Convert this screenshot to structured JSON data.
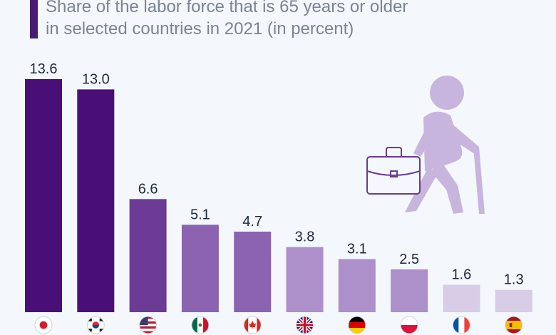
{
  "header": {
    "title_line1": "Share of the labor force that is 65 years or older",
    "title_line2": "in selected countries in 2021 (in percent)"
  },
  "chart_data": {
    "type": "bar",
    "title": "Share of the labor force that is 65 years or older in selected countries in 2021 (in percent)",
    "categories": [
      "Japan",
      "South Korea",
      "United States",
      "Mexico",
      "Canada",
      "United Kingdom",
      "Germany",
      "Poland",
      "France",
      "Spain"
    ],
    "values": [
      13.6,
      13.0,
      6.6,
      5.1,
      4.7,
      3.8,
      3.1,
      2.5,
      1.6,
      1.3
    ],
    "bar_colors": [
      "#4a0f76",
      "#4a0f76",
      "#6b3b96",
      "#8c63b0",
      "#8c63b0",
      "#ad8fca",
      "#ad8fca",
      "#ad8fca",
      "#d8cce6",
      "#d8cce6"
    ],
    "flag_icons": [
      "japan-flag-icon",
      "south-korea-flag-icon",
      "usa-flag-icon",
      "mexico-flag-icon",
      "canada-flag-icon",
      "uk-flag-icon",
      "germany-flag-icon",
      "poland-flag-icon",
      "france-flag-icon",
      "spain-flag-icon"
    ],
    "ylim": [
      0,
      13.6
    ],
    "grid": false,
    "legend": "none"
  },
  "illustration": {
    "icon": "elderly-worker-with-briefcase-icon",
    "color": "#c8b5dd"
  }
}
